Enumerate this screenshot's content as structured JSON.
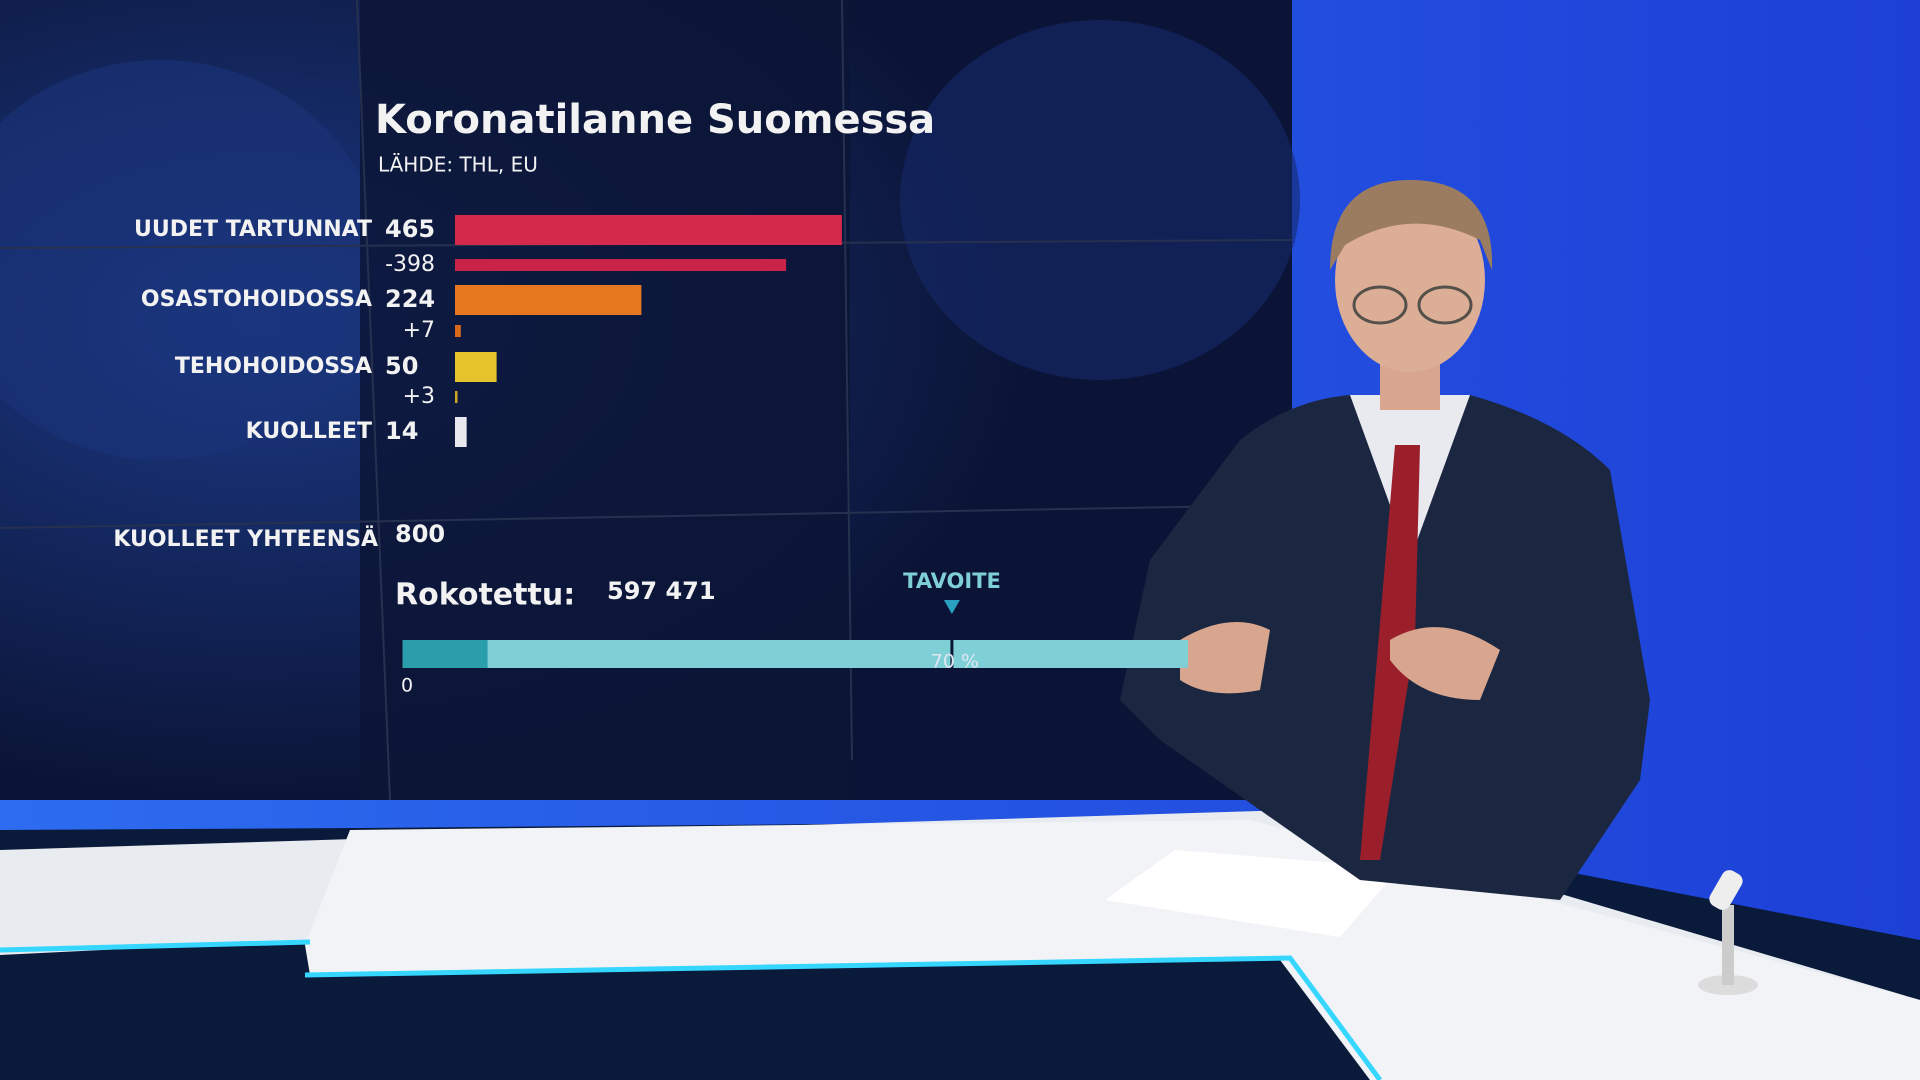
{
  "chart_data": {
    "type": "bar",
    "title": "Koronatilanne Suomessa",
    "subtitle": "LÄHDE: THL, EU",
    "categories": [
      "UUDET TARTUNNAT",
      "OSASTOHOIDOSSA",
      "TEHOHOIDOSSA",
      "KUOLLEET"
    ],
    "series": [
      {
        "values": [
          465,
          224,
          50,
          14
        ],
        "colors": [
          "#d62a4d",
          "#e8781f",
          "#e6c32a",
          "#e8e8ee"
        ]
      },
      {
        "values": [
          -398,
          7,
          3,
          null
        ],
        "value_labels": [
          "-398",
          "+7",
          "+3",
          null
        ],
        "colors": [
          "#c92448",
          "#d96a1c",
          "#cfa622",
          null
        ]
      }
    ],
    "total": {
      "label": "KUOLLEET YHTEENSÄ",
      "value": 800
    },
    "vaccination": {
      "label": "Rokotettu:",
      "value": 597471,
      "value_label": "597 471",
      "share": 11,
      "target_label": "TAVOITE",
      "xlim": [
        0,
        100
      ],
      "xticks": [
        0,
        {
          "value": 70,
          "label": "70 %"
        }
      ],
      "track_color": "#7fd0d6",
      "fill_color": "#2a9eab"
    }
  }
}
